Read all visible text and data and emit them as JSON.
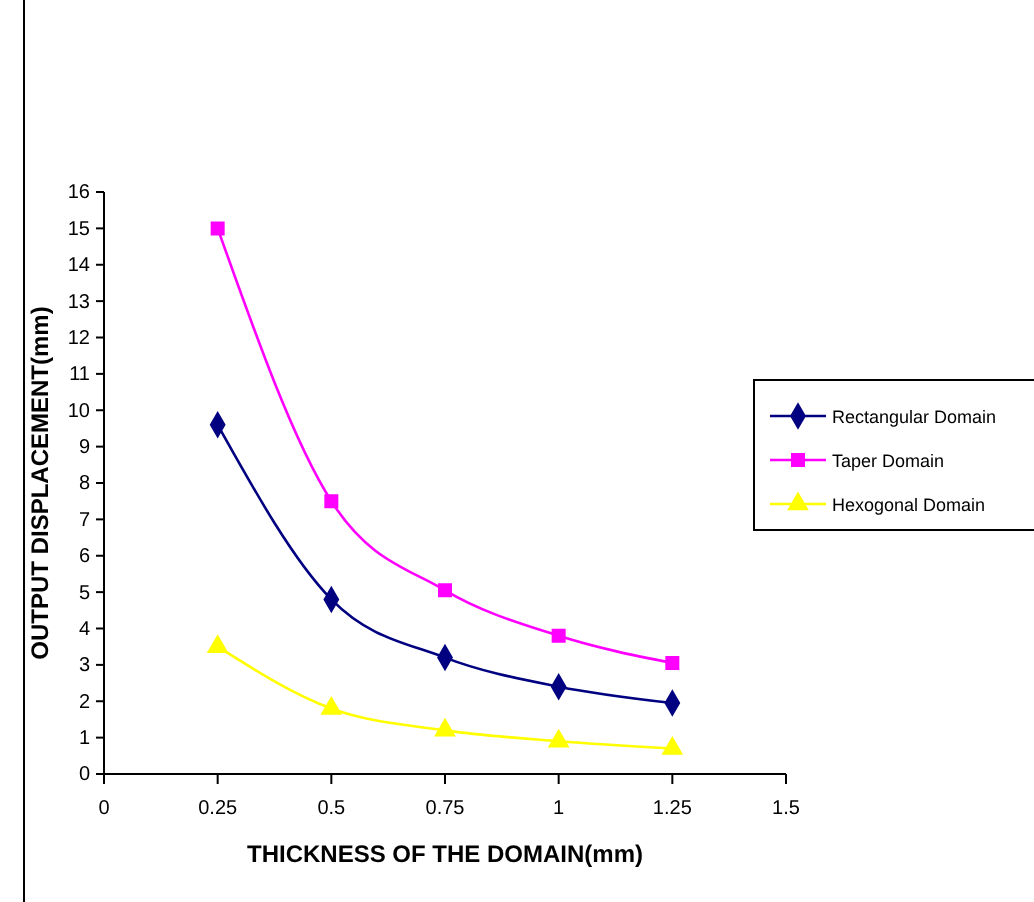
{
  "chart_data": {
    "type": "line",
    "xlabel": "THICKNESS OF THE DOMAIN(mm)",
    "ylabel": "OUTPUT DISPLACEMENT(mm)",
    "x": [
      0.25,
      0.5,
      0.75,
      1,
      1.25
    ],
    "xlim": [
      0,
      1.5
    ],
    "xticks": [
      0,
      0.25,
      0.5,
      0.75,
      1,
      1.25,
      1.5
    ],
    "ylim": [
      0,
      16
    ],
    "yticks": [
      0,
      1,
      2,
      3,
      4,
      5,
      6,
      7,
      8,
      9,
      10,
      11,
      12,
      13,
      14,
      15,
      16
    ],
    "grid": false,
    "legend": "right",
    "line_style": "solid",
    "series": [
      {
        "name": "Rectangular Domain",
        "color": "#000080",
        "marker": "diamond",
        "values": [
          9.6,
          4.8,
          3.2,
          2.4,
          1.95
        ]
      },
      {
        "name": "Taper Domain",
        "color": "#ff00ff",
        "marker": "square",
        "values": [
          15,
          7.5,
          5.05,
          3.8,
          3.05
        ]
      },
      {
        "name": "Hexogonal Domain",
        "color": "#ffff00",
        "marker": "triangle",
        "values": [
          3.5,
          1.8,
          1.2,
          0.9,
          0.7
        ]
      }
    ]
  }
}
